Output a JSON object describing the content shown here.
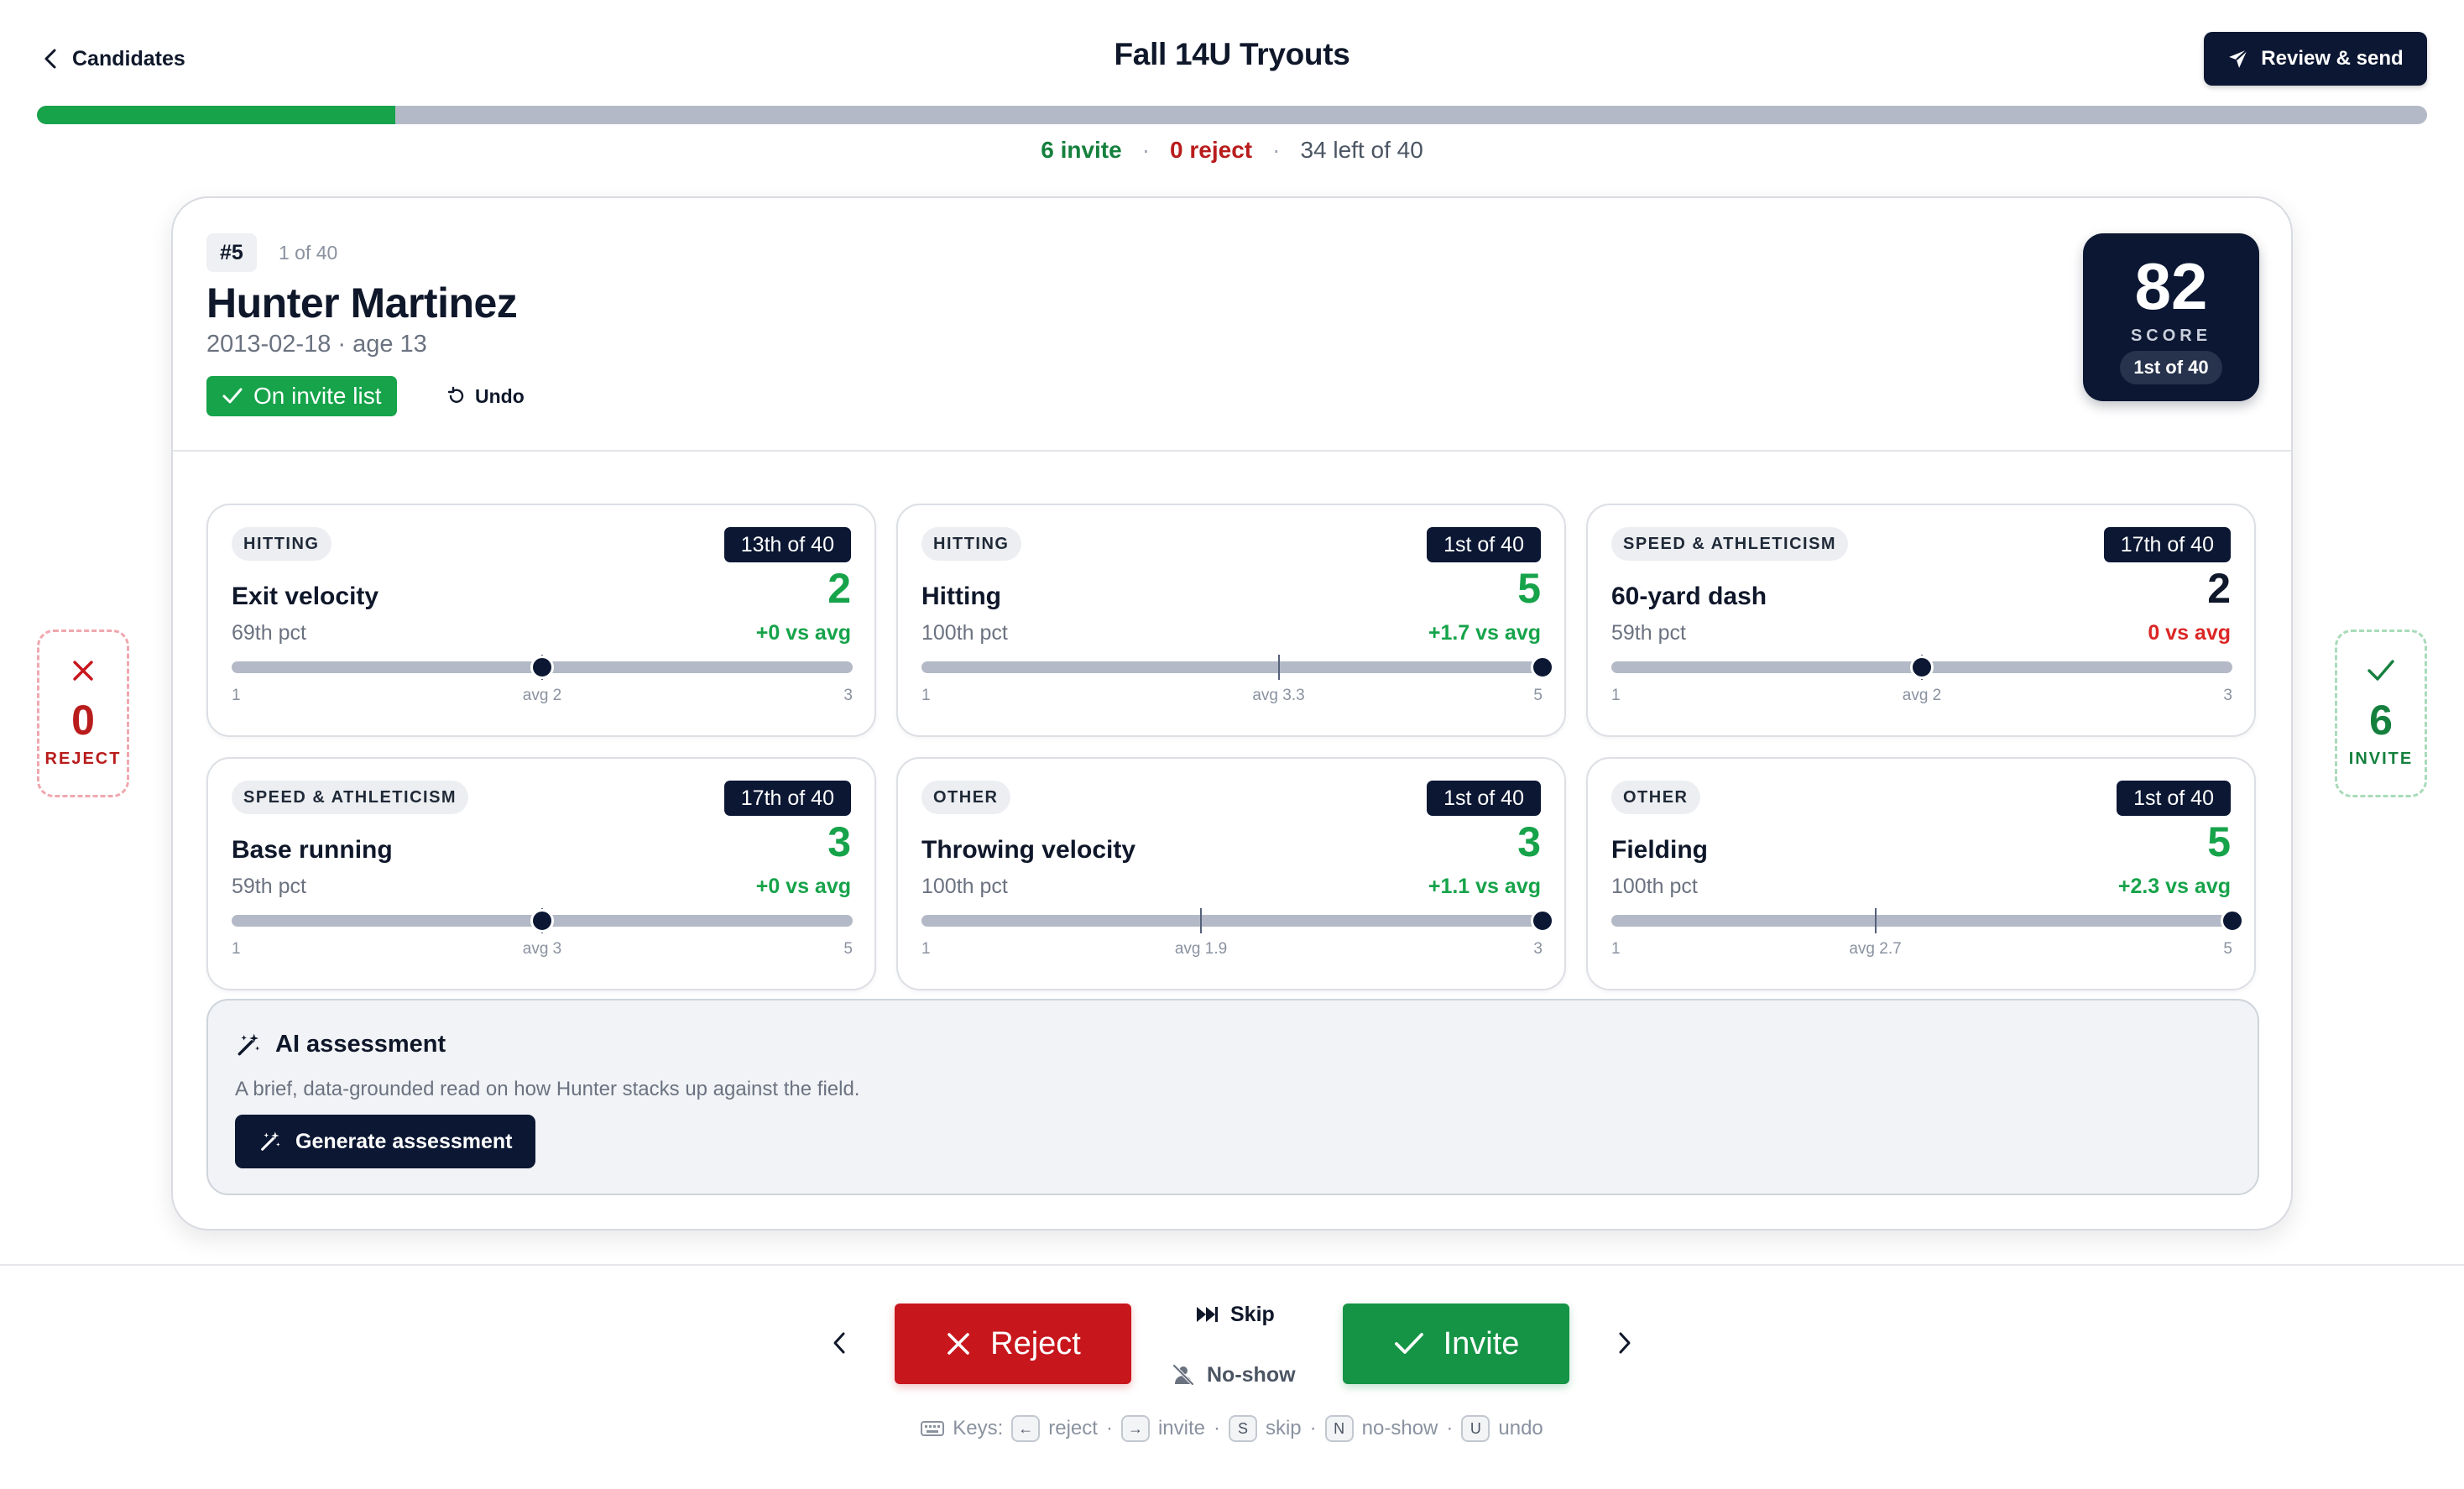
{
  "header": {
    "back_label": "Candidates",
    "title": "Fall 14U Tryouts",
    "review_label": "Review & send"
  },
  "progress": {
    "fraction": 0.15,
    "invite_text": "6 invite",
    "reject_text": "0 reject",
    "remaining_text": "34 left of 40",
    "separator": "·"
  },
  "candidate": {
    "number": "#5",
    "position_text": "1 of 40",
    "name": "Hunter Martinez",
    "meta": "2013-02-18 · age 13",
    "status_label": "On invite list",
    "undo_label": "Undo",
    "score": "82",
    "score_label": "SCORE",
    "score_rank": "1st of 40"
  },
  "metrics": [
    {
      "category": "HITTING",
      "rank": "13th of 40",
      "title": "Exit velocity",
      "value": "2",
      "value_tone": "green",
      "pct": "69th pct",
      "delta": "+0 vs avg",
      "delta_tone": "green",
      "min": 1,
      "max": 3,
      "avg": 2,
      "score": 2,
      "min_label": "1",
      "max_label": "3",
      "avg_label": "avg 2"
    },
    {
      "category": "HITTING",
      "rank": "1st of 40",
      "title": "Hitting",
      "value": "5",
      "value_tone": "green",
      "pct": "100th pct",
      "delta": "+1.7 vs avg",
      "delta_tone": "green",
      "min": 1,
      "max": 5,
      "avg": 3.3,
      "score": 5,
      "min_label": "1",
      "max_label": "5",
      "avg_label": "avg 3.3"
    },
    {
      "category": "SPEED & ATHLETICISM",
      "rank": "17th of 40",
      "title": "60-yard dash",
      "value": "2",
      "value_tone": "black",
      "pct": "59th pct",
      "delta": "0 vs avg",
      "delta_tone": "red",
      "min": 1,
      "max": 3,
      "avg": 2,
      "score": 2,
      "min_label": "1",
      "max_label": "3",
      "avg_label": "avg 2"
    },
    {
      "category": "SPEED & ATHLETICISM",
      "rank": "17th of 40",
      "title": "Base running",
      "value": "3",
      "value_tone": "green",
      "pct": "59th pct",
      "delta": "+0 vs avg",
      "delta_tone": "green",
      "min": 1,
      "max": 5,
      "avg": 3,
      "score": 3,
      "min_label": "1",
      "max_label": "5",
      "avg_label": "avg 3"
    },
    {
      "category": "OTHER",
      "rank": "1st of 40",
      "title": "Throwing velocity",
      "value": "3",
      "value_tone": "green",
      "pct": "100th pct",
      "delta": "+1.1 vs avg",
      "delta_tone": "green",
      "min": 1,
      "max": 3,
      "avg": 1.9,
      "score": 3,
      "min_label": "1",
      "max_label": "3",
      "avg_label": "avg 1.9"
    },
    {
      "category": "OTHER",
      "rank": "1st of 40",
      "title": "Fielding",
      "value": "5",
      "value_tone": "green",
      "pct": "100th pct",
      "delta": "+2.3 vs avg",
      "delta_tone": "green",
      "min": 1,
      "max": 5,
      "avg": 2.7,
      "score": 5,
      "min_label": "1",
      "max_label": "5",
      "avg_label": "avg 2.7"
    }
  ],
  "ai": {
    "title": "AI assessment",
    "description": "A brief, data-grounded read on how Hunter stacks up against the field.",
    "button_label": "Generate assessment"
  },
  "side_counters": {
    "reject_count": "0",
    "reject_label": "REJECT",
    "invite_count": "6",
    "invite_label": "INVITE"
  },
  "actions": {
    "reject_label": "Reject",
    "invite_label": "Invite",
    "skip_label": "Skip",
    "noshow_label": "No-show"
  },
  "shortcuts": {
    "prefix": "Keys:",
    "items": [
      {
        "key": "←",
        "label": "reject"
      },
      {
        "key": "→",
        "label": "invite"
      },
      {
        "key": "S",
        "label": "skip"
      },
      {
        "key": "N",
        "label": "no-show"
      },
      {
        "key": "U",
        "label": "undo"
      }
    ],
    "separator": "·"
  },
  "colors": {
    "navy": "#0b1733",
    "green": "#16a34a",
    "red": "#c8161d",
    "track": "#b3b9c6"
  }
}
